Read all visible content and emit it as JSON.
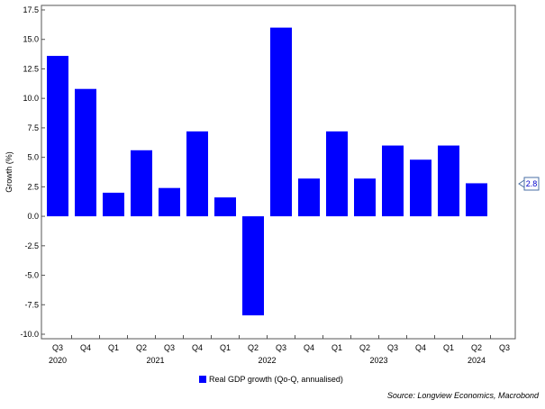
{
  "chart_data": {
    "type": "bar",
    "ylabel": "Growth (%)",
    "ylim": [
      -10.0,
      17.5
    ],
    "yticks": [
      "17.5",
      "15.0",
      "12.5",
      "10.0",
      "7.5",
      "5.0",
      "2.5",
      "0.0",
      "-2.5",
      "-5.0",
      "-7.5",
      "-10.0"
    ],
    "ytick_values": [
      17.5,
      15.0,
      12.5,
      10.0,
      7.5,
      5.0,
      2.5,
      0.0,
      -2.5,
      -5.0,
      -7.5,
      -10.0
    ],
    "quarter_labels": [
      "Q3",
      "Q4",
      "Q1",
      "Q2",
      "Q3",
      "Q4",
      "Q1",
      "Q2",
      "Q3",
      "Q4",
      "Q1",
      "Q2",
      "Q3",
      "Q4",
      "Q1",
      "Q2",
      "Q3"
    ],
    "year_labels": [
      {
        "label": "2020",
        "at": 0
      },
      {
        "label": "2021",
        "at": 3.5
      },
      {
        "label": "2022",
        "at": 7.5
      },
      {
        "label": "2023",
        "at": 11.5
      },
      {
        "label": "2024",
        "at": 15
      }
    ],
    "series": [
      {
        "name": "Real GDP growth (Qo-Q, annualised)",
        "color": "#0000ff",
        "values": [
          13.6,
          10.8,
          2.0,
          5.6,
          2.4,
          7.2,
          1.6,
          -8.4,
          16.0,
          3.2,
          7.2,
          3.2,
          6.0,
          4.8,
          6.0,
          2.8,
          null
        ]
      }
    ],
    "last_value_label": "2.8",
    "grid": false,
    "legend": "bottom-center"
  },
  "source": "Source: Longview Economics, Macrobond"
}
